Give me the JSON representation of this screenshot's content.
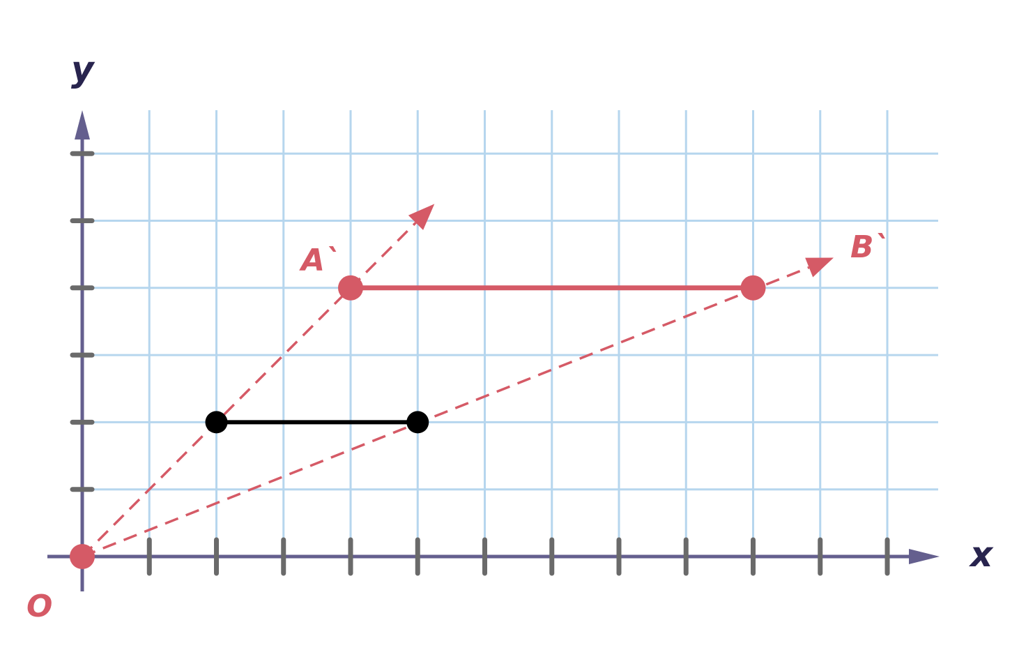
{
  "diagram": {
    "type": "dilation-from-origin",
    "x_axis_label": "x",
    "y_axis_label": "y",
    "origin_label": "O",
    "x_range": [
      0,
      12
    ],
    "y_range": [
      0,
      6
    ],
    "grid": true,
    "original_segment": {
      "color": "#000000",
      "start": [
        2,
        2
      ],
      "end": [
        5,
        2
      ]
    },
    "image_segment": {
      "color": "#d55a66",
      "start": {
        "label": "A`",
        "point": [
          4,
          4
        ]
      },
      "end": {
        "label": "B`",
        "point": [
          10,
          4
        ]
      }
    },
    "rays": [
      {
        "through": [
          4,
          4
        ],
        "arrow_to": [
          5.25,
          5.25
        ]
      },
      {
        "through": [
          10,
          4
        ],
        "arrow_to": [
          11.2,
          4.45
        ]
      }
    ],
    "colors": {
      "grid": "#b6d6ee",
      "axis": "#645f8e",
      "tick": "#6a6a6a",
      "accent": "#d55a66",
      "axis_label": "#28244e"
    }
  }
}
